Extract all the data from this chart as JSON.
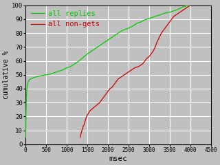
{
  "title": "",
  "xlabel": "msec",
  "ylabel": "cumulative %",
  "xlim": [
    0,
    4500
  ],
  "ylim": [
    0,
    100
  ],
  "xticks": [
    0,
    500,
    1000,
    1500,
    2000,
    2500,
    3000,
    3500,
    4000,
    4500
  ],
  "yticks": [
    0,
    10,
    20,
    30,
    40,
    50,
    60,
    70,
    80,
    90,
    100
  ],
  "bg_color": "#c0c0c0",
  "plot_bg_color": "#c0c0c0",
  "grid_color": "#ffffff",
  "line1_color": "#00cc00",
  "line2_color": "#cc0000",
  "line1_label": "all replies",
  "line2_label": "all non-gets",
  "green_x": [
    0,
    5,
    10,
    15,
    20,
    30,
    40,
    55,
    70,
    90,
    120,
    160,
    200,
    260,
    320,
    400,
    500,
    600,
    700,
    800,
    900,
    1000,
    1100,
    1200,
    1300,
    1400,
    1500,
    1600,
    1700,
    1800,
    1900,
    2000,
    2100,
    2200,
    2300,
    2400,
    2500,
    2600,
    2700,
    2800,
    2900,
    3000,
    3100,
    3200,
    3300,
    3400,
    3500,
    3600,
    3700,
    3800,
    3900,
    4000
  ],
  "green_y": [
    5,
    14,
    22,
    29,
    34,
    39,
    42,
    44,
    45.5,
    46.5,
    47,
    47.5,
    48,
    48.5,
    49,
    49.5,
    50,
    50.5,
    51.5,
    52.5,
    53.5,
    55,
    56,
    58,
    60,
    62.5,
    65,
    67,
    69,
    71,
    73,
    75,
    77,
    79,
    81,
    82.5,
    83.5,
    85,
    87,
    88,
    89.5,
    90.5,
    91.5,
    92.5,
    93.5,
    94.5,
    95,
    96,
    97,
    98.5,
    99.5,
    100
  ],
  "red_x": [
    1330,
    1340,
    1360,
    1380,
    1400,
    1420,
    1430,
    1440,
    1450,
    1460,
    1470,
    1480,
    1490,
    1500,
    1510,
    1520,
    1540,
    1560,
    1600,
    1640,
    1680,
    1720,
    1760,
    1800,
    1850,
    1900,
    1950,
    2000,
    2050,
    2100,
    2150,
    2200,
    2250,
    2300,
    2350,
    2400,
    2450,
    2500,
    2550,
    2600,
    2650,
    2700,
    2750,
    2800,
    2850,
    2900,
    2950,
    3000,
    3050,
    3100,
    3150,
    3200,
    3250,
    3300,
    3350,
    3400,
    3450,
    3500,
    3550,
    3600,
    3650,
    3700,
    3750,
    3800,
    3850,
    3900,
    3950,
    4000
  ],
  "red_y": [
    5,
    7,
    9,
    11,
    13,
    14,
    15,
    16,
    17,
    18,
    19,
    20,
    20.5,
    21,
    21.5,
    22,
    23,
    24,
    25,
    26,
    27,
    28,
    29,
    30,
    32,
    34,
    36,
    38,
    40,
    41,
    43,
    45,
    47,
    48,
    49,
    50,
    51,
    52,
    53,
    54,
    55,
    55.5,
    56,
    57,
    58,
    60,
    62,
    63,
    65,
    67,
    70,
    74,
    77,
    80,
    82,
    84,
    86,
    88,
    90,
    92,
    93,
    94,
    95,
    96,
    97,
    98,
    99,
    100
  ]
}
